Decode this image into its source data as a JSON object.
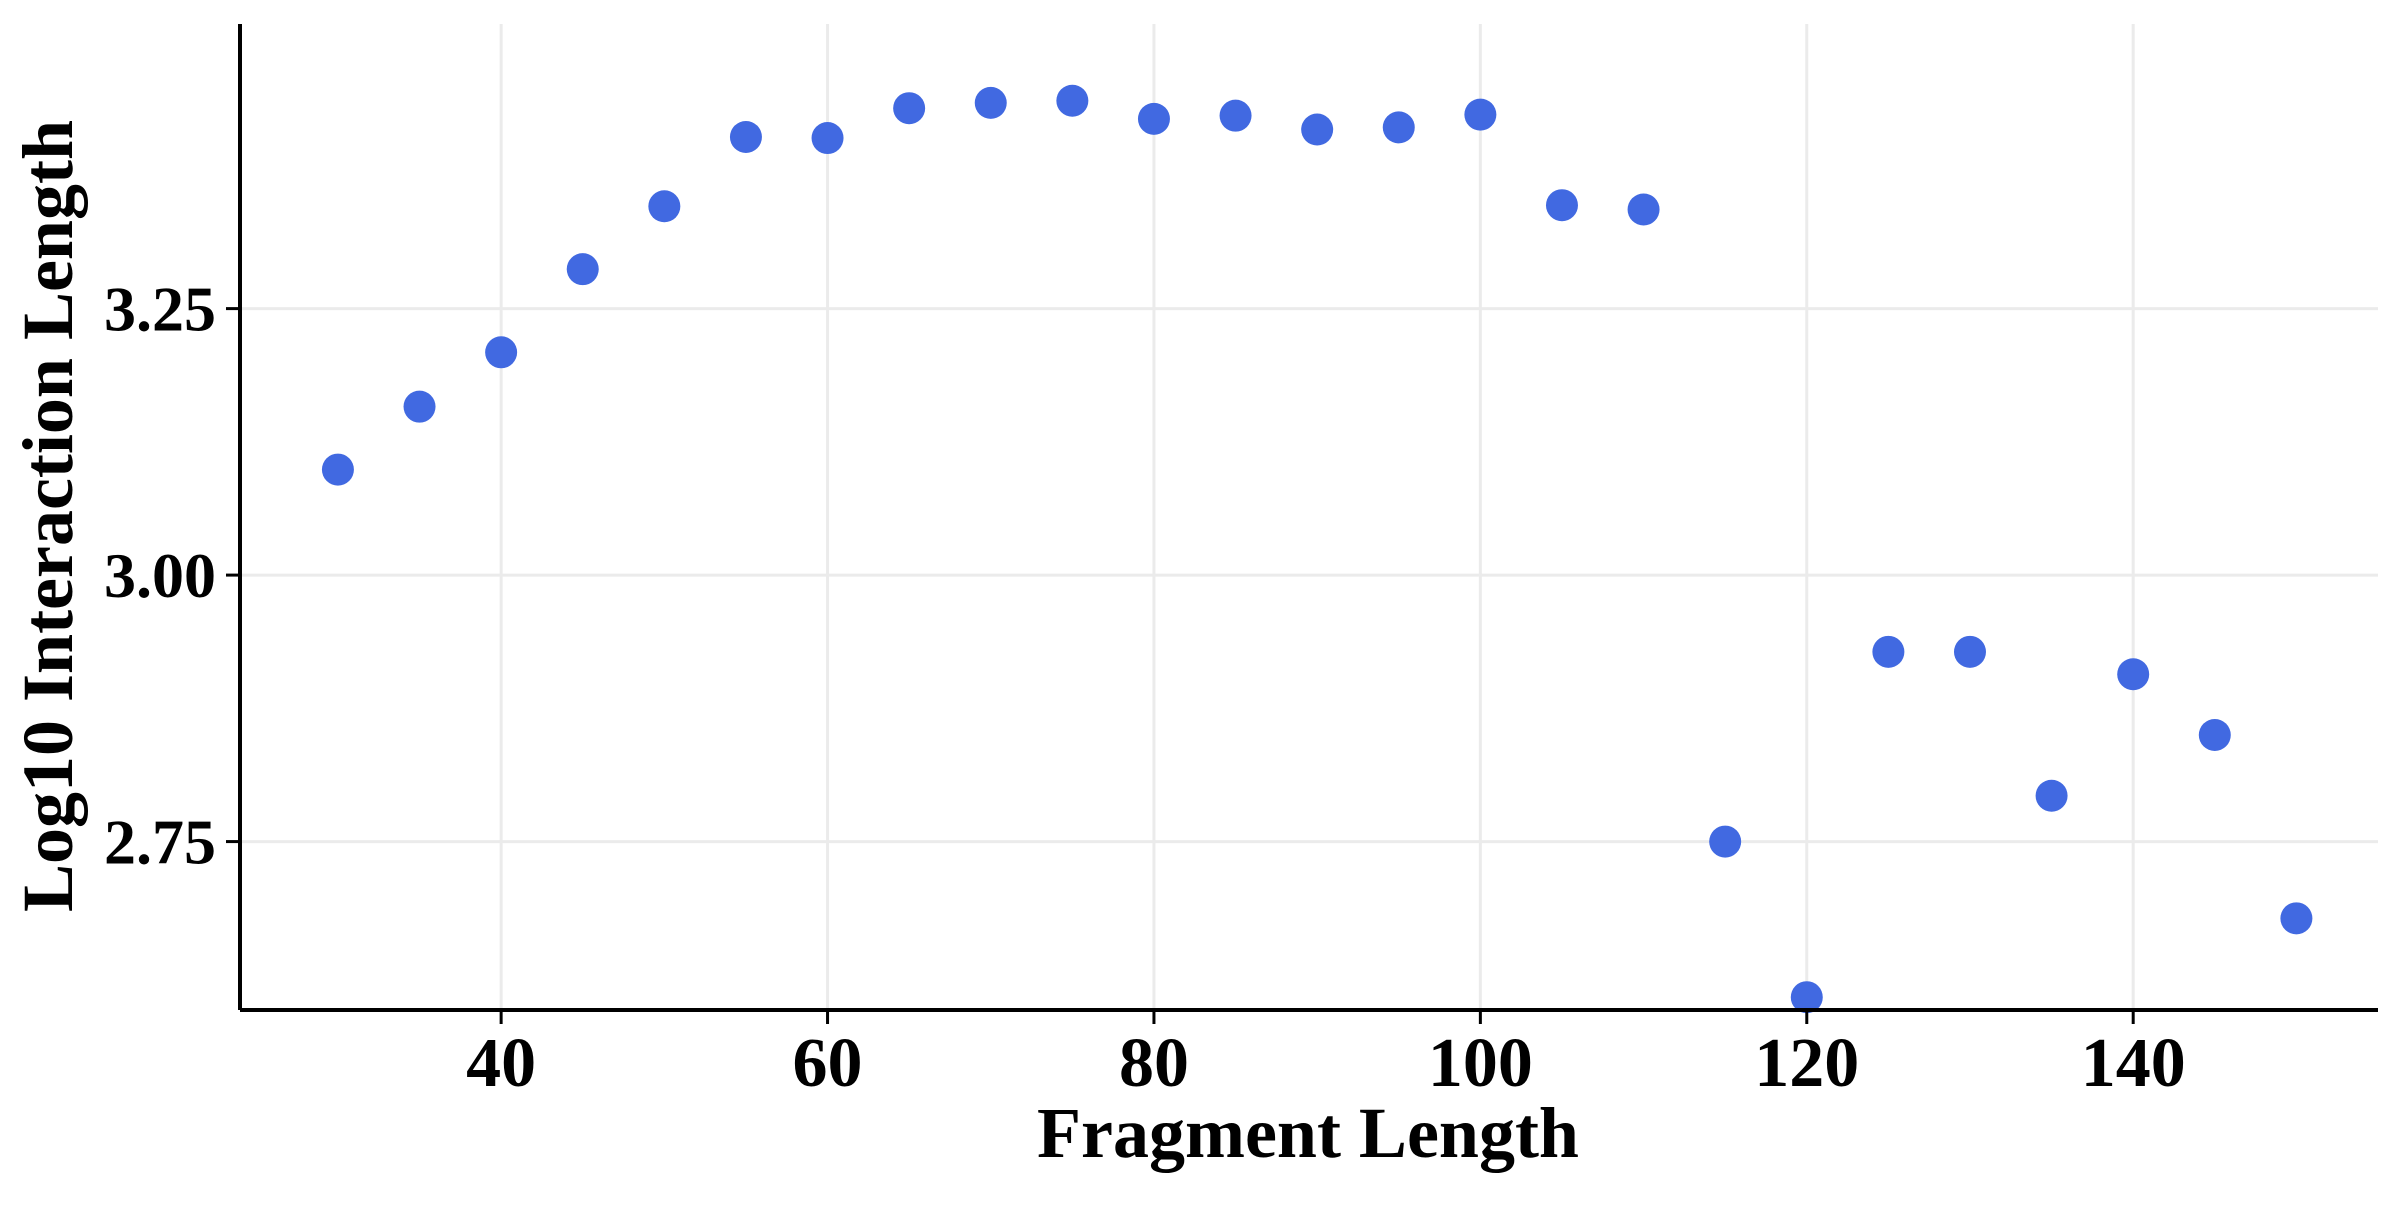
{
  "colors": {
    "point": "#4169E1",
    "grid": "#EBEBEB",
    "axis": "#000000",
    "background": "#FFFFFF"
  },
  "chart_data": {
    "type": "scatter",
    "title": "",
    "xlabel": "Fragment Length",
    "ylabel": "Log10 Interaction Length",
    "xlim": [
      24.0,
      155.0
    ],
    "ylim": [
      2.592,
      3.517
    ],
    "xticks": [
      40,
      60,
      80,
      100,
      120,
      140
    ],
    "xtick_labels": [
      "40",
      "60",
      "80",
      "100",
      "120",
      "140"
    ],
    "yticks": [
      2.75,
      3.0,
      3.25
    ],
    "ytick_labels": [
      "2.75",
      "3.00",
      "3.25"
    ],
    "grid": true,
    "legend": "none",
    "series": [
      {
        "x": [
          30,
          35,
          40,
          45,
          50,
          55,
          60,
          65,
          70,
          75,
          80,
          85,
          90,
          95,
          100,
          105,
          110,
          115,
          120,
          125,
          130,
          135,
          140,
          145,
          150
        ],
        "y": [
          3.099,
          3.158,
          3.209,
          3.287,
          3.346,
          3.411,
          3.41,
          3.438,
          3.443,
          3.445,
          3.428,
          3.431,
          3.418,
          3.42,
          3.432,
          3.347,
          3.343,
          2.75,
          2.604,
          2.928,
          2.928,
          2.793,
          2.907,
          2.85,
          2.678
        ]
      }
    ]
  }
}
